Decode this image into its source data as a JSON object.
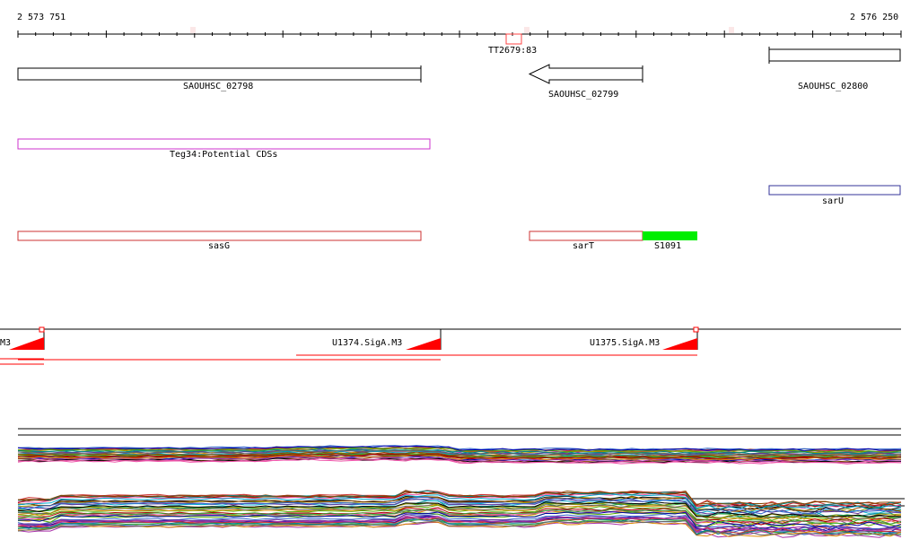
{
  "ruler": {
    "start_label": "2 573 751",
    "end_label": "2 576 250"
  },
  "markers": {
    "terminator": "TT2679:83"
  },
  "genes": {
    "g1": "SAOUHSC_02798",
    "g2": "SAOUHSC_02799",
    "g3": "SAOUHSC_02800"
  },
  "potential_cds": {
    "label": "Teg34:Potential CDSs"
  },
  "regulators": {
    "sarU": "sarU",
    "sasG": "sasG",
    "sarT": "sarT",
    "srna": "S1091"
  },
  "promoters": {
    "p0": "M3",
    "p1": "U1374.SigA.M3",
    "p2": "U1375.SigA.M3"
  },
  "colors": {
    "gene_outline": "#000000",
    "potential_cds": "#cc33cc",
    "sarU": "#333399",
    "regulator": "#cc3333",
    "srna_fill": "#00ee00",
    "promoter": "#ff0000",
    "terminator": "#ff4444"
  }
}
